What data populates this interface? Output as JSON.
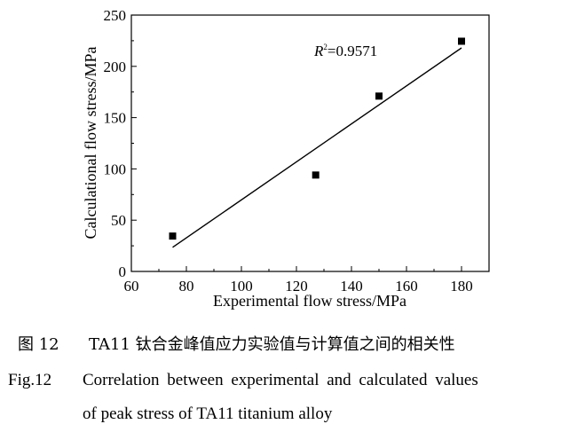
{
  "chart_data": {
    "type": "scatter",
    "xlabel": "Experimental flow stress/MPa",
    "ylabel": "Calculational flow stress/MPa",
    "xlim": [
      60,
      190
    ],
    "ylim": [
      0,
      250
    ],
    "xticks": [
      60,
      80,
      100,
      120,
      140,
      160,
      180
    ],
    "yticks": [
      0,
      50,
      100,
      150,
      200,
      250
    ],
    "grid": false,
    "series": [
      {
        "name": "data",
        "x": [
          75,
          127,
          150,
          180
        ],
        "y": [
          34.5,
          94,
          171,
          224.5
        ],
        "marker": "square"
      }
    ],
    "fit_line": {
      "x": [
        75,
        180
      ],
      "y": [
        23.5,
        218
      ]
    },
    "annotation": {
      "text_main": "R",
      "text_sup": "2",
      "text_rest": "=0.9571"
    }
  },
  "caption": {
    "cn_label": "图 12",
    "cn_text": "TA11 钛合金峰值应力实验值与计算值之间的相关性",
    "en_label": "Fig.12",
    "en_text_line1": "Correlation between experimental and calculated values",
    "en_text_line2": "of peak stress of TA11 titanium alloy"
  }
}
